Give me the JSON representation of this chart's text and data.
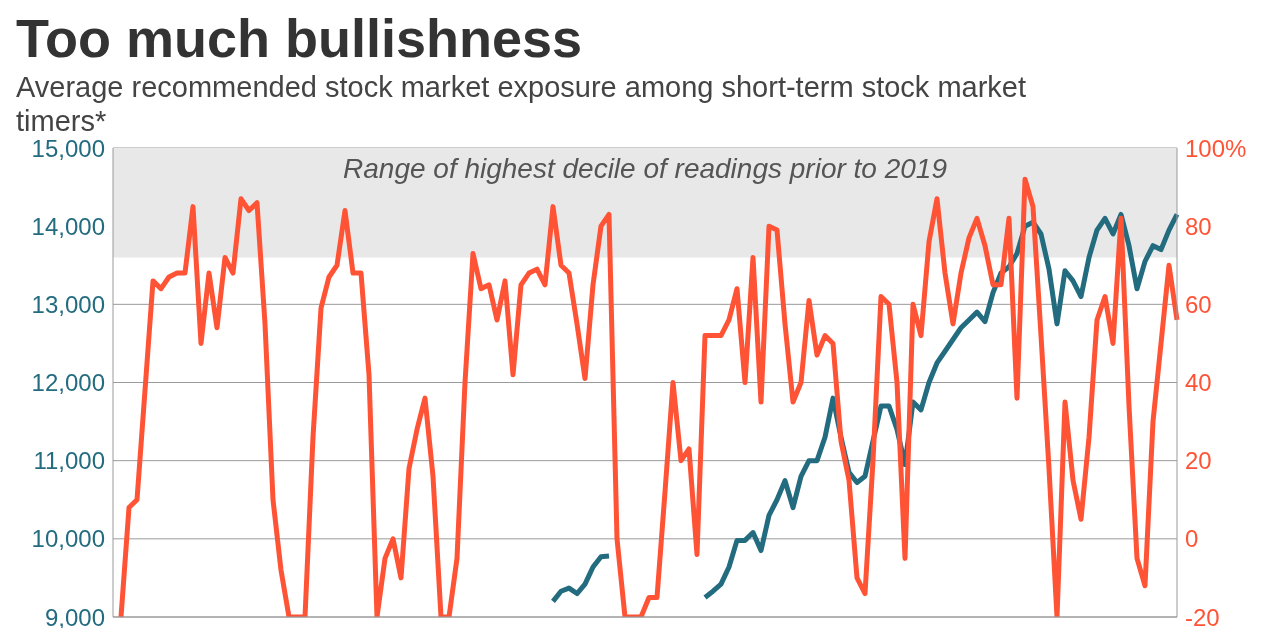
{
  "chart_data": {
    "type": "line",
    "title": "Too much bullishness",
    "subtitle": "Average recommended stock market exposure among short-term stock market timers*",
    "categories": [
      null,
      null,
      null,
      null,
      null,
      null,
      null,
      null,
      null,
      null,
      null,
      null,
      null,
      null,
      null,
      null,
      null,
      null,
      null,
      null,
      null,
      null,
      null,
      null,
      null,
      null,
      null,
      null,
      null,
      null,
      null,
      null,
      null,
      null,
      null,
      null,
      null,
      null,
      null,
      null,
      null,
      null,
      null,
      null,
      null,
      null,
      null,
      null,
      null,
      null,
      null,
      null,
      null,
      null,
      null,
      null,
      null,
      null,
      null,
      null,
      null,
      null,
      null,
      null,
      null,
      null,
      null,
      null,
      null,
      null,
      null,
      null,
      null,
      null,
      null,
      null,
      null,
      null,
      null,
      null,
      null,
      null,
      null,
      null,
      null,
      null,
      null,
      null,
      null,
      null,
      null,
      null,
      null,
      null,
      null,
      null,
      null,
      null,
      null,
      null,
      null,
      null,
      null,
      null,
      null,
      null,
      null,
      null,
      null,
      null,
      null,
      null,
      null,
      null,
      null,
      null,
      null,
      null,
      null,
      null,
      null,
      null,
      null,
      null,
      null,
      null,
      null,
      null,
      null,
      null,
      null,
      null,
      null,
      null
    ],
    "series": [
      {
        "color": "#236b7f",
        "values": [
          null,
          null,
          null,
          null,
          null,
          null,
          null,
          null,
          null,
          null,
          null,
          null,
          null,
          null,
          null,
          null,
          null,
          null,
          null,
          null,
          null,
          null,
          null,
          null,
          null,
          null,
          null,
          null,
          null,
          null,
          null,
          null,
          null,
          null,
          null,
          null,
          null,
          null,
          null,
          null,
          null,
          null,
          null,
          null,
          null,
          null,
          null,
          null,
          null,
          null,
          null,
          null,
          null,
          null,
          null,
          9200,
          9330,
          9370,
          9300,
          9420,
          9640,
          9770,
          9780,
          null,
          null,
          null,
          null,
          null,
          null,
          null,
          null,
          null,
          null,
          null,
          9250,
          9330,
          9420,
          9640,
          9980,
          9980,
          10080,
          9850,
          10300,
          10500,
          10745,
          10400,
          10800,
          11000,
          11000,
          11300,
          11800,
          11300,
          10850,
          10720,
          10800,
          11250,
          11700,
          11700,
          11400,
          10950,
          11750,
          11650,
          12000,
          12250,
          12400,
          12550,
          12700,
          12800,
          12900,
          12780,
          13150,
          13400,
          13480,
          13650,
          14000,
          14050,
          13900,
          13450,
          12750,
          13430,
          13300,
          13100,
          13600,
          13950,
          14100,
          13900,
          14150,
          13750,
          13200,
          13550,
          13750,
          13700,
          13950,
          14150
        ]
      },
      {
        "color": "#ff5336",
        "axis": "y2",
        "values": [
          null,
          -20,
          8,
          10,
          38,
          66,
          64,
          67,
          68,
          68,
          85,
          50,
          68,
          54,
          72,
          68,
          87,
          84,
          86,
          55,
          10,
          -8,
          -20,
          -20,
          -20,
          26,
          59,
          67,
          70,
          84,
          68,
          68,
          42,
          -20,
          -5,
          0,
          -10,
          18,
          28,
          36,
          16,
          -20,
          -20,
          -5,
          40,
          73,
          64,
          65,
          56,
          66,
          42,
          65,
          68,
          69,
          65,
          85,
          70,
          68,
          55,
          41,
          65,
          80,
          83,
          0,
          -20,
          -20,
          -20,
          -15,
          -15,
          12,
          40,
          20,
          23,
          -4,
          52,
          52,
          52,
          56,
          64,
          40,
          72,
          35,
          80,
          79,
          55,
          35,
          40,
          61,
          47,
          52,
          50,
          25,
          15,
          -10,
          -14,
          20,
          62,
          60,
          40,
          -5,
          60,
          52,
          76,
          87,
          68,
          55,
          68,
          77,
          82,
          75,
          65,
          65,
          82,
          36,
          92,
          85,
          52,
          18,
          -20,
          35,
          15,
          5,
          26,
          56,
          62,
          50,
          82,
          34,
          -5,
          -12,
          30,
          50,
          70,
          56
        ]
      }
    ],
    "ylim": [
      9000,
      15000
    ],
    "yticks": [
      {
        "value": 9000,
        "label": "9,000"
      },
      {
        "value": 10000,
        "label": "10,000"
      },
      {
        "value": 11000,
        "label": "11,000"
      },
      {
        "value": 12000,
        "label": "12,000"
      },
      {
        "value": 13000,
        "label": "13,000"
      },
      {
        "value": 14000,
        "label": "14,000"
      },
      {
        "value": 15000,
        "label": "15,000"
      }
    ],
    "y2lim": [
      -20,
      100
    ],
    "y2ticks": [
      -20,
      0,
      20,
      40,
      60,
      80,
      {
        "value": 100,
        "label": "100%"
      }
    ],
    "bands": [
      {
        "axis": "y2",
        "from": 72,
        "to": 100,
        "label": "Range of highest decile of readings prior to 2019",
        "color": "#e8e8e8"
      }
    ],
    "grid": "y",
    "tick_labels": "y"
  }
}
